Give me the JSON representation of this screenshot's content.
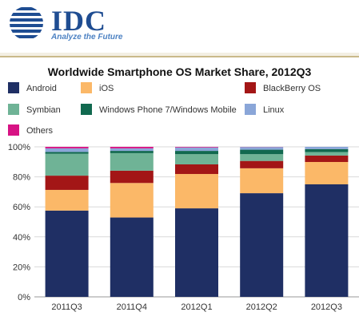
{
  "header": {
    "brand": "IDC",
    "tagline": "Analyze the Future"
  },
  "colors": {
    "android": "#1f2f64",
    "ios": "#fbb868",
    "blackberry": "#a31616",
    "symbian": "#6fb396",
    "windows": "#11694f",
    "linux": "#8aa6d8",
    "others": "#d71384",
    "grid": "#d9d9d9",
    "text": "#333333"
  },
  "chart_data": {
    "type": "bar",
    "stacked": true,
    "title": "Worldwide Smartphone OS Market Share, 2012Q3",
    "xlabel": "",
    "ylabel": "",
    "ylim": [
      0,
      100
    ],
    "yticks": [
      "0%",
      "20%",
      "40%",
      "60%",
      "80%",
      "100%"
    ],
    "categories": [
      "2011Q3",
      "2011Q4",
      "2012Q1",
      "2012Q2",
      "2012Q3"
    ],
    "legend_position": "top",
    "series": [
      {
        "name": "Android",
        "color": "#1f2f64",
        "values": [
          57.5,
          52.9,
          59.0,
          69.1,
          75.0
        ]
      },
      {
        "name": "iOS",
        "color": "#fbb868",
        "values": [
          13.8,
          23.0,
          22.9,
          16.6,
          14.9
        ]
      },
      {
        "name": "BlackBerry OS",
        "color": "#a31616",
        "values": [
          9.5,
          8.2,
          6.4,
          4.9,
          4.3
        ]
      },
      {
        "name": "Symbian",
        "color": "#6fb396",
        "values": [
          14.6,
          11.7,
          6.8,
          4.5,
          2.3
        ]
      },
      {
        "name": "Windows Phone 7/Windows Mobile",
        "color": "#11694f",
        "values": [
          1.2,
          1.5,
          2.2,
          3.0,
          2.0
        ]
      },
      {
        "name": "Linux",
        "color": "#8aa6d8",
        "values": [
          2.4,
          1.7,
          2.3,
          1.8,
          1.5
        ]
      },
      {
        "name": "Others",
        "color": "#d71384",
        "values": [
          1.0,
          1.0,
          0.4,
          0.1,
          0.0
        ]
      }
    ]
  }
}
